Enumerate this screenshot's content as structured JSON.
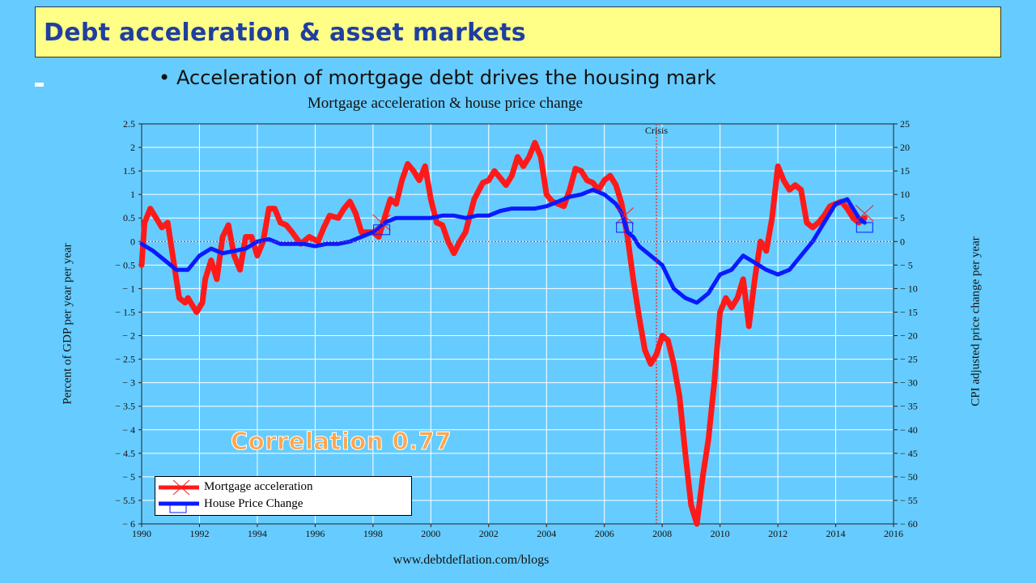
{
  "slide": {
    "title": "Debt acceleration  & asset markets",
    "bullet": "Acceleration of mortgage debt drives the housing mark",
    "annotation": "Correlation 0.77",
    "source": "www.debtdeflation.com/blogs"
  },
  "colors": {
    "background": "#66ccff",
    "title_box": "#ffff88",
    "title_text": "#1f3f9f",
    "mortgage_series": "#ff1a1a",
    "house_series": "#0a1aff",
    "annotation": "#ffa64d"
  },
  "chart_data": {
    "type": "line",
    "title": "Mortgage acceleration & house price change",
    "xlabel": "",
    "ylabel": "Percent of GDP per year per year",
    "ylabel_right": "CPI adjusted price change per year",
    "xlim": [
      1990,
      2016
    ],
    "ylim": [
      -6,
      2.5
    ],
    "ylim_right": [
      -60,
      25
    ],
    "x_ticks": [
      "1990",
      "1992",
      "1994",
      "1996",
      "1998",
      "2000",
      "2002",
      "2004",
      "2006",
      "2008",
      "2010",
      "2012",
      "2014",
      "2016"
    ],
    "y_ticks": [
      "2.5",
      "2",
      "1.5",
      "1",
      "0.5",
      "0",
      "− 0.5",
      "− 1",
      "− 1.5",
      "− 2",
      "− 2.5",
      "− 3",
      "− 3.5",
      "− 4",
      "− 4.5",
      "− 5",
      "− 5.5",
      "− 6"
    ],
    "y_ticks_right": [
      "25",
      "20",
      "15",
      "10",
      "5",
      "0",
      "− 5",
      "− 10",
      "− 15",
      "− 20",
      "− 25",
      "− 30",
      "− 35",
      "− 40",
      "− 45",
      "− 50",
      "− 55",
      "− 60"
    ],
    "grid": true,
    "legend_position": "bottom-left",
    "annotations": [
      {
        "label": "Crisis",
        "x": 2007.8
      }
    ],
    "series": [
      {
        "name": "Mortgage acceleration",
        "axis": "left",
        "color": "#ff1a1a",
        "x": [
          1990.0,
          1990.1,
          1990.3,
          1990.5,
          1990.7,
          1990.9,
          1991.1,
          1991.3,
          1991.5,
          1991.6,
          1991.8,
          1991.9,
          1992.1,
          1992.2,
          1992.4,
          1992.6,
          1992.8,
          1993.0,
          1993.2,
          1993.4,
          1993.6,
          1993.8,
          1994.0,
          1994.2,
          1994.4,
          1994.6,
          1994.8,
          1995.0,
          1995.2,
          1995.5,
          1995.8,
          1996.1,
          1996.3,
          1996.5,
          1996.8,
          1997.0,
          1997.2,
          1997.4,
          1997.6,
          1997.8,
          1998.0,
          1998.2,
          1998.4,
          1998.6,
          1998.8,
          1999.0,
          1999.2,
          1999.4,
          1999.6,
          1999.8,
          2000.0,
          2000.2,
          2000.4,
          2000.6,
          2000.8,
          2001.0,
          2001.2,
          2001.5,
          2001.8,
          2002.0,
          2002.2,
          2002.4,
          2002.6,
          2002.8,
          2003.0,
          2003.2,
          2003.4,
          2003.6,
          2003.8,
          2004.0,
          2004.2,
          2004.4,
          2004.6,
          2004.8,
          2005.0,
          2005.2,
          2005.4,
          2005.6,
          2005.8,
          2006.0,
          2006.2,
          2006.4,
          2006.6,
          2006.8,
          2007.0,
          2007.2,
          2007.4,
          2007.6,
          2007.8,
          2008.0,
          2008.2,
          2008.4,
          2008.6,
          2008.8,
          2009.0,
          2009.2,
          2009.4,
          2009.6,
          2009.8,
          2010.0,
          2010.2,
          2010.4,
          2010.6,
          2010.8,
          2011.0,
          2011.2,
          2011.4,
          2011.6,
          2011.8,
          2012.0,
          2012.2,
          2012.4,
          2012.6,
          2012.8,
          2013.0,
          2013.2,
          2013.4,
          2013.6,
          2013.8,
          2014.0,
          2014.2,
          2014.4,
          2014.6,
          2014.8,
          2015.0
        ],
        "values": [
          -0.5,
          0.4,
          0.7,
          0.5,
          0.3,
          0.4,
          -0.4,
          -1.2,
          -1.3,
          -1.2,
          -1.4,
          -1.5,
          -1.3,
          -0.8,
          -0.4,
          -0.8,
          0.1,
          0.35,
          -0.3,
          -0.6,
          0.1,
          0.1,
          -0.3,
          0.0,
          0.7,
          0.7,
          0.4,
          0.35,
          0.2,
          -0.05,
          0.1,
          0.0,
          0.3,
          0.55,
          0.5,
          0.7,
          0.85,
          0.6,
          0.2,
          0.2,
          0.2,
          0.1,
          0.5,
          0.9,
          0.8,
          1.3,
          1.65,
          1.5,
          1.3,
          1.6,
          0.9,
          0.4,
          0.35,
          0.0,
          -0.25,
          0.0,
          0.2,
          0.9,
          1.25,
          1.3,
          1.5,
          1.35,
          1.2,
          1.4,
          1.8,
          1.6,
          1.8,
          2.1,
          1.8,
          1.0,
          0.85,
          0.8,
          0.75,
          1.1,
          1.55,
          1.5,
          1.3,
          1.25,
          1.1,
          1.3,
          1.4,
          1.2,
          0.8,
          0.1,
          -0.8,
          -1.6,
          -2.3,
          -2.6,
          -2.4,
          -2.0,
          -2.1,
          -2.6,
          -3.3,
          -4.5,
          -5.6,
          -6.0,
          -5.0,
          -4.2,
          -3.0,
          -1.5,
          -1.2,
          -1.4,
          -1.2,
          -0.8,
          -1.8,
          -0.8,
          0.0,
          -0.2,
          0.5,
          1.6,
          1.3,
          1.1,
          1.2,
          1.1,
          0.4,
          0.3,
          0.4,
          0.55,
          0.75,
          0.8,
          0.85,
          0.7,
          0.5,
          0.4,
          0.5
        ]
      },
      {
        "name": "House Price Change",
        "axis": "right",
        "color": "#0a1aff",
        "x": [
          1990.0,
          1990.4,
          1990.8,
          1991.2,
          1991.6,
          1992.0,
          1992.4,
          1992.8,
          1993.2,
          1993.6,
          1994.0,
          1994.4,
          1994.8,
          1995.2,
          1995.6,
          1996.0,
          1996.4,
          1996.8,
          1997.2,
          1997.6,
          1998.0,
          1998.4,
          1998.8,
          1999.2,
          1999.6,
          2000.0,
          2000.4,
          2000.8,
          2001.2,
          2001.6,
          2002.0,
          2002.4,
          2002.8,
          2003.2,
          2003.6,
          2004.0,
          2004.4,
          2004.8,
          2005.2,
          2005.6,
          2006.0,
          2006.4,
          2006.6,
          2006.8,
          2007.0,
          2007.2,
          2007.6,
          2008.0,
          2008.4,
          2008.8,
          2009.2,
          2009.6,
          2010.0,
          2010.4,
          2010.8,
          2011.2,
          2011.6,
          2012.0,
          2012.4,
          2012.8,
          2013.2,
          2013.6,
          2014.0,
          2014.4,
          2014.8,
          2015.0
        ],
        "values": [
          -0.5,
          -2,
          -4,
          -6,
          -6,
          -3,
          -1.5,
          -2.5,
          -2,
          -1.5,
          0,
          0.5,
          -0.5,
          -0.5,
          -0.5,
          -1,
          -0.5,
          -0.5,
          0,
          1,
          2,
          4,
          5,
          5,
          5,
          5,
          5.5,
          5.5,
          5,
          5.5,
          5.5,
          6.5,
          7,
          7,
          7,
          7.5,
          8.5,
          9.5,
          10,
          11,
          10,
          8,
          6,
          2,
          1,
          -1,
          -3,
          -5,
          -10,
          -12,
          -13,
          -11,
          -7,
          -6,
          -3,
          -4.5,
          -6,
          -7,
          -6,
          -3,
          0,
          4,
          8,
          9,
          5,
          4
        ]
      }
    ]
  }
}
